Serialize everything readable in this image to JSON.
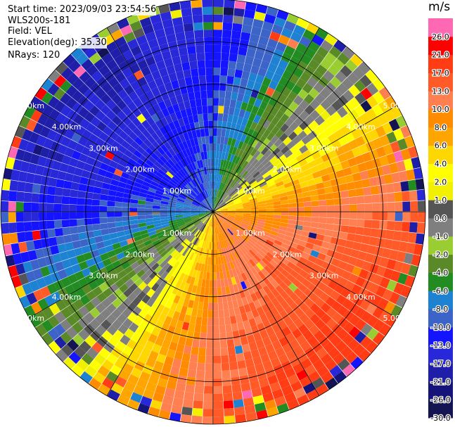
{
  "header": {
    "start_time": "Start time: 2023/09/03 23:54:56",
    "instrument": "WLS200s-181",
    "field": "Field: VEL",
    "elevation": "Elevation(deg): 35.30",
    "nrays": "NRays: 120"
  },
  "chart_data": {
    "type": "heatmap",
    "projection": "polar-ppi",
    "n_rays": 120,
    "range_km_max": 5.0,
    "range_rings_km": [
      1,
      2,
      3,
      4,
      5
    ],
    "range_ring_labels": [
      "1.00km",
      "2.00km",
      "3.00km",
      "4.00km",
      "5.00km"
    ],
    "colorbar": {
      "title": "m/s",
      "levels": [
        -30.0,
        -26.0,
        -21.0,
        -17.0,
        -13.0,
        -10.0,
        -8.0,
        -6.0,
        -4.0,
        -2.0,
        -1.0,
        0.0,
        1.0,
        2.0,
        4.0,
        6.0,
        8.0,
        10.0,
        13.0,
        17.0,
        21.0,
        26.0,
        30.0
      ],
      "tick_labels": [
        "-30.0",
        "-26.0",
        "-21.0",
        "-17.0",
        "-13.0",
        "-10.0",
        "-8.0",
        "-6.0",
        "-4.0",
        "-2.0",
        "-1.0",
        "0.0",
        "1.0",
        "2.0",
        "4.0",
        "6.0",
        "8.0",
        "10.0",
        "13.0",
        "17.0",
        "21.0",
        "26.0"
      ],
      "colors": [
        "#141452",
        "#14147a",
        "#1e1ea8",
        "#2828d8",
        "#1414ff",
        "#3c64c8",
        "#1e82d2",
        "#228b22",
        "#5a8a28",
        "#9acd32",
        "#7f7f7f",
        "#555555",
        "#f0f000",
        "#ffff00",
        "#ffd700",
        "#ffa500",
        "#ff8c00",
        "#ff7f50",
        "#ff5a28",
        "#ff3c14",
        "#ff0000",
        "#ff69b4"
      ]
    },
    "velocity_pattern": {
      "max_inbound_azimuth_deg": 315,
      "max_outbound_azimuth_deg": 135,
      "near_peak_ms": 9,
      "far_peak_ms": 20
    }
  }
}
